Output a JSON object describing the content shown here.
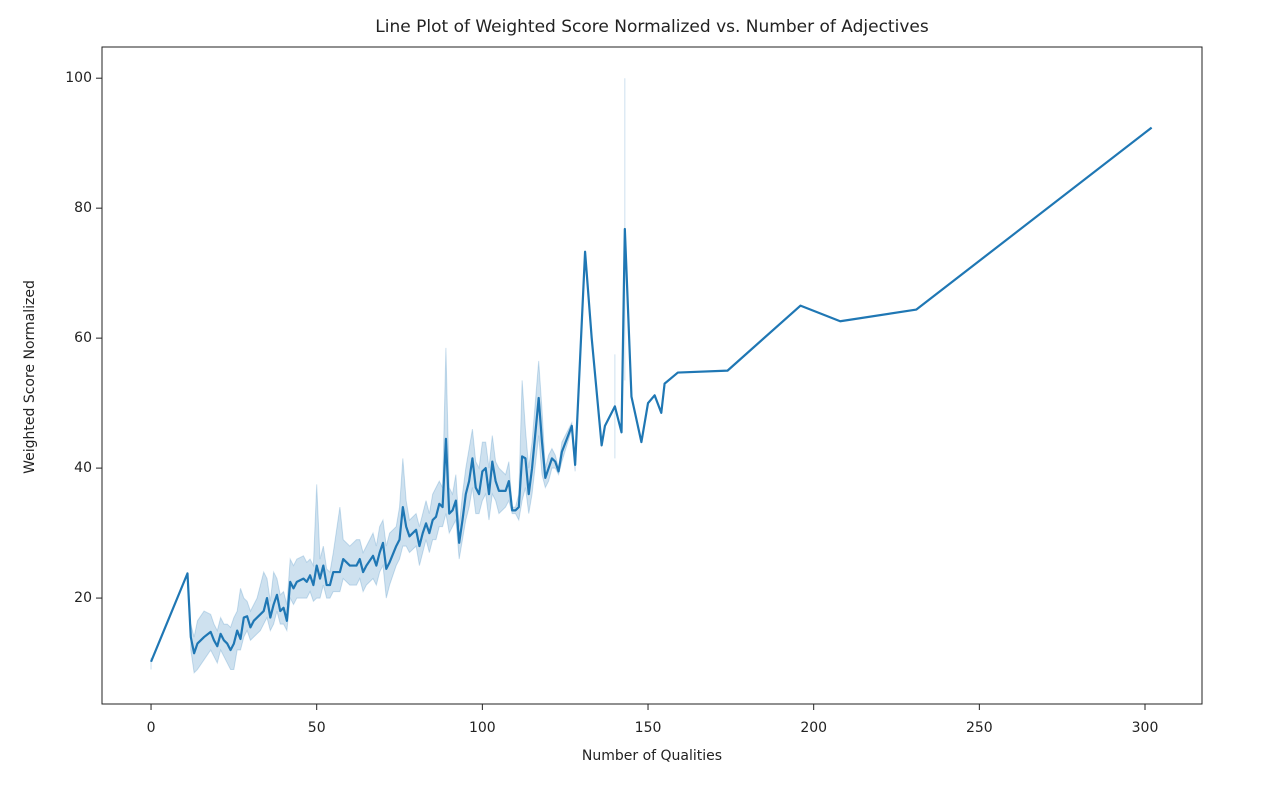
{
  "chart_data": {
    "type": "line",
    "title": "Line Plot of Weighted Score Normalized vs. Number of Adjectives",
    "xlabel": "Number of Qualities",
    "ylabel": "Weighted Score Normalized",
    "xlim": [
      -14.8,
      317.2
    ],
    "ylim": [
      3.7,
      104.8
    ],
    "xticks": [
      0,
      50,
      100,
      150,
      200,
      250,
      300
    ],
    "yticks": [
      20,
      40,
      60,
      80,
      100
    ],
    "grid": false,
    "x": [
      0,
      11,
      12,
      13,
      14,
      16,
      18,
      19,
      20,
      21,
      22,
      23,
      24,
      25,
      26,
      27,
      28,
      29,
      30,
      31,
      32,
      33,
      34,
      35,
      36,
      37,
      38,
      39,
      40,
      41,
      42,
      43,
      44,
      46,
      47,
      48,
      49,
      50,
      51,
      52,
      53,
      54,
      55,
      57,
      58,
      60,
      62,
      63,
      64,
      65,
      67,
      68,
      69,
      70,
      71,
      72,
      74,
      75,
      76,
      77,
      78,
      80,
      81,
      82,
      83,
      84,
      85,
      86,
      87,
      88,
      89,
      90,
      91,
      92,
      93,
      94,
      95,
      96,
      97,
      98,
      99,
      100,
      101,
      102,
      103,
      104,
      105,
      107,
      108,
      109,
      110,
      111,
      112,
      113,
      114,
      115,
      117,
      118,
      119,
      120,
      121,
      122,
      123,
      124,
      127,
      128,
      131,
      133,
      136,
      137,
      140,
      142,
      143,
      145,
      148,
      150,
      152,
      154,
      155,
      159,
      174,
      196,
      208,
      231,
      302
    ],
    "series": [
      {
        "color": "#1f77b4",
        "band_opacity": 0.22,
        "values": [
          10.2,
          23.8,
          14,
          11.5,
          13,
          14,
          14.8,
          13.5,
          12.6,
          14.5,
          13.5,
          13,
          12,
          13,
          15,
          13.7,
          17,
          17.2,
          15.5,
          16.5,
          17,
          17.5,
          18,
          20,
          17,
          19,
          20.5,
          18,
          18.5,
          16.5,
          22.5,
          21.5,
          22.5,
          23,
          22.5,
          23.5,
          22,
          25,
          23,
          25,
          22,
          22,
          24,
          24,
          26,
          25,
          25,
          26,
          24,
          25,
          26.5,
          25,
          27,
          28.5,
          24.5,
          25.5,
          28,
          29,
          34,
          31,
          29.5,
          30.5,
          28,
          30,
          31.5,
          30,
          32,
          32.5,
          34.5,
          34,
          44.5,
          33,
          33.5,
          35,
          28.5,
          32,
          36,
          38,
          41.5,
          37,
          36,
          39.5,
          40,
          36,
          41,
          38,
          36.5,
          36.5,
          38,
          33.5,
          33.5,
          34,
          41.8,
          41.5,
          36,
          40,
          50.8,
          44,
          38.5,
          40,
          41.5,
          41,
          39.5,
          42.5,
          46.5,
          40.5,
          73.3,
          60,
          43.5,
          46.5,
          49.5,
          45.5,
          76.8,
          51,
          44,
          50,
          51.2,
          48.5,
          53,
          54.7,
          55,
          65,
          62.6,
          64.4,
          92.4
        ],
        "band_lower": [
          9,
          null,
          12,
          8.5,
          9,
          10.5,
          12,
          11,
          10,
          12,
          11,
          10,
          9,
          9,
          12,
          12,
          14,
          15,
          13.5,
          14,
          14.5,
          15,
          16,
          17,
          15,
          16,
          18,
          16,
          16,
          15,
          20,
          19,
          20,
          20,
          20,
          21,
          19.5,
          20,
          20,
          22,
          20,
          20,
          21,
          21,
          23,
          22,
          22,
          23,
          21,
          22,
          23,
          22,
          24,
          25,
          20,
          22,
          25,
          26,
          28,
          28,
          27,
          28,
          25,
          27,
          29,
          27,
          29,
          29,
          31,
          31,
          33,
          30,
          31,
          32,
          26,
          29,
          32,
          34,
          37,
          33,
          33,
          35,
          36,
          32,
          36,
          35,
          33,
          34,
          35,
          33,
          33,
          32,
          35,
          37,
          33,
          36,
          45,
          39,
          37,
          38,
          40,
          40,
          39,
          41,
          46,
          39.5,
          null,
          null,
          null,
          null,
          41.5,
          null,
          53.5,
          null,
          null,
          null,
          null,
          null,
          null,
          null,
          null,
          null,
          null,
          null,
          null
        ],
        "band_upper": [
          10.8,
          null,
          16,
          14,
          16.5,
          18,
          17.5,
          16,
          15,
          17,
          16,
          16,
          15.5,
          17,
          18,
          21.5,
          20,
          19.5,
          18,
          19,
          20,
          22,
          24,
          23,
          19.5,
          24,
          23,
          20.5,
          21,
          19,
          26,
          25,
          26,
          26.5,
          25.5,
          26,
          25,
          37.5,
          26,
          28,
          24.5,
          24,
          27,
          34,
          29,
          28,
          29,
          29,
          27,
          28,
          30,
          28,
          31,
          32,
          28,
          30,
          31,
          34,
          41.5,
          35,
          32,
          33,
          31,
          33,
          35,
          33,
          36,
          37,
          38,
          37,
          58.5,
          37,
          36,
          39,
          31,
          36,
          40,
          43,
          46,
          41,
          40,
          44,
          44,
          40,
          45,
          41,
          40,
          39,
          41,
          34,
          34,
          36,
          53.5,
          46,
          40,
          44,
          56.5,
          49,
          40,
          42,
          43,
          42,
          40,
          44,
          47,
          41.5,
          null,
          null,
          null,
          null,
          57.5,
          null,
          100,
          null,
          null,
          null,
          null,
          null,
          null,
          null,
          null,
          null,
          null,
          null,
          null
        ]
      }
    ]
  }
}
